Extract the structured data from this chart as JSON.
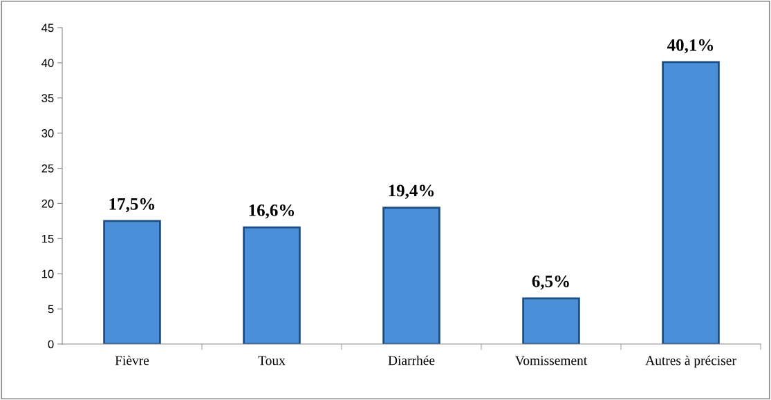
{
  "chart_data": {
    "type": "bar",
    "categories": [
      "Fièvre",
      "Toux",
      "Diarrhée",
      "Vomissement",
      "Autres à préciser"
    ],
    "values": [
      17.5,
      16.6,
      19.4,
      6.5,
      40.1
    ],
    "value_labels": [
      "17,5%",
      "16,6%",
      "19,4%",
      "6,5%",
      "40,1%"
    ],
    "color": "#4a8fd8",
    "ylim": [
      0,
      45
    ],
    "yticks": [
      0,
      5,
      10,
      15,
      20,
      25,
      30,
      35,
      40,
      45
    ],
    "grid": false,
    "legend": false
  }
}
